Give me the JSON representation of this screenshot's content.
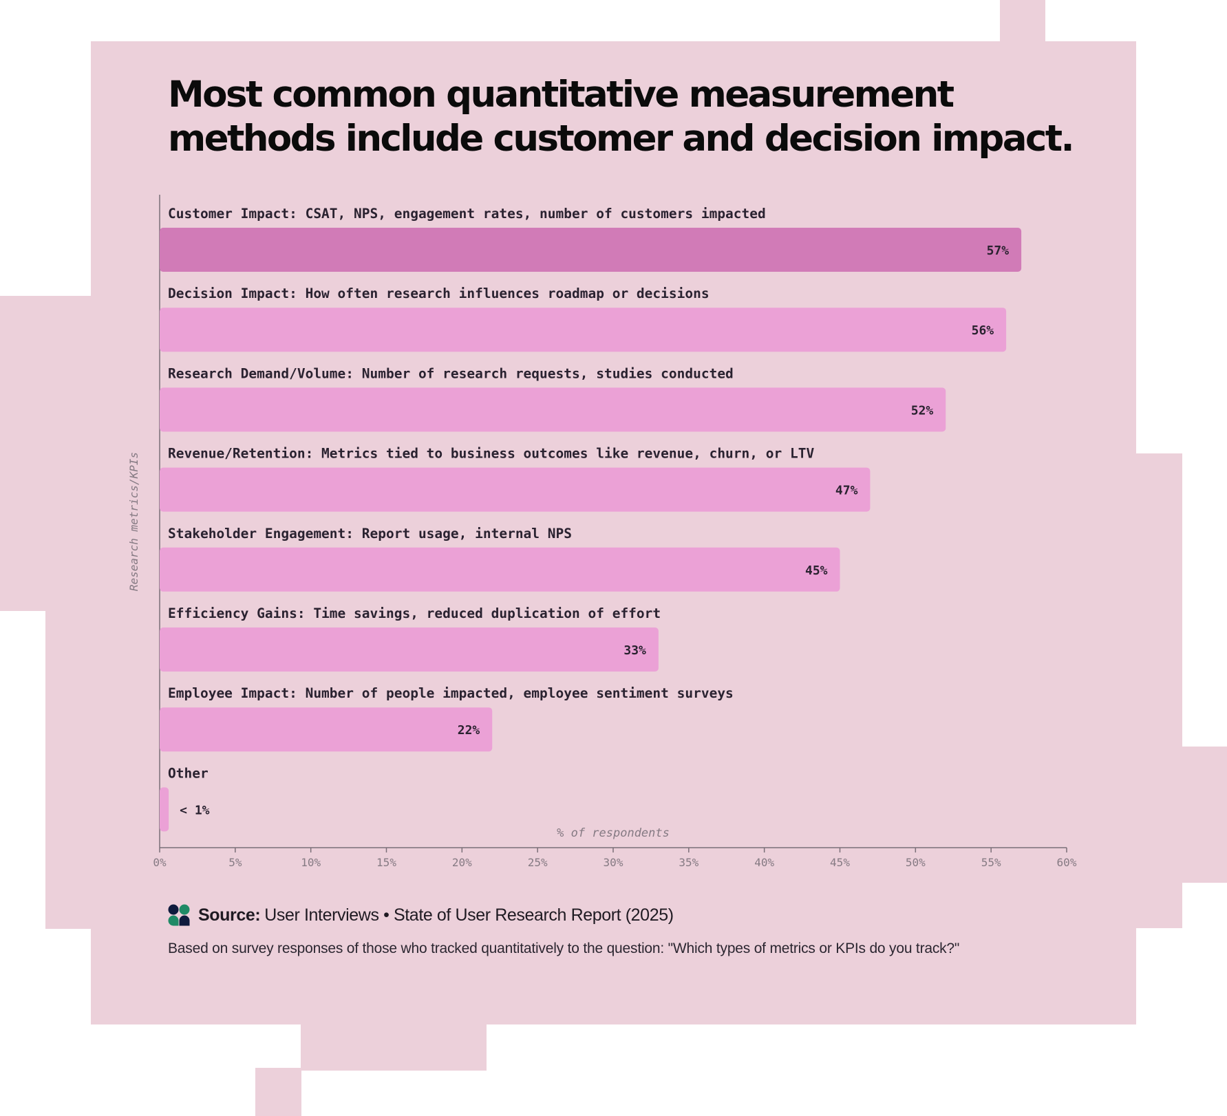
{
  "page": {
    "title": "Most common quantitative measurement methods include customer and decision impact.",
    "colors": {
      "background": "#ecd0da",
      "bar": "#eba1d6",
      "bar_highlight": "#d17bb7",
      "text_dark": "#2a2230",
      "axis": "#7a6f78"
    }
  },
  "chart_data": {
    "type": "bar",
    "orientation": "horizontal",
    "ylabel": "Research metrics/KPIs",
    "xlabel": "% of respondents",
    "xlim": [
      0,
      60
    ],
    "x_ticks": [
      "0%",
      "5%",
      "10%",
      "15%",
      "20%",
      "25%",
      "30%",
      "35%",
      "40%",
      "45%",
      "50%",
      "55%",
      "60%"
    ],
    "categories": [
      "Customer Impact: CSAT, NPS, engagement rates, number of customers impacted",
      "Decision Impact: How often research influences roadmap or decisions",
      "Research Demand/Volume: Number of research requests, studies conducted",
      "Revenue/Retention: Metrics tied to business outcomes like revenue, churn, or LTV",
      "Stakeholder Engagement: Report usage, internal NPS",
      "Efficiency Gains: Time savings, reduced duplication of effort",
      "Employee Impact: Number of people impacted, employee sentiment surveys",
      "Other"
    ],
    "values": [
      57,
      56,
      52,
      47,
      45,
      33,
      22,
      0.6
    ],
    "value_labels": [
      "57%",
      "56%",
      "52%",
      "47%",
      "45%",
      "33%",
      "22%",
      "< 1%"
    ],
    "highlight_index": 0,
    "grid": false
  },
  "source": {
    "label": "Source:",
    "text": "User Interviews • State of User Research Report (2025)",
    "note": "Based on survey responses of those who tracked quantitatively to the question: \"Which types of metrics or KPIs do you track?\""
  },
  "icons": {
    "logo": "user-interviews-logo-icon"
  }
}
